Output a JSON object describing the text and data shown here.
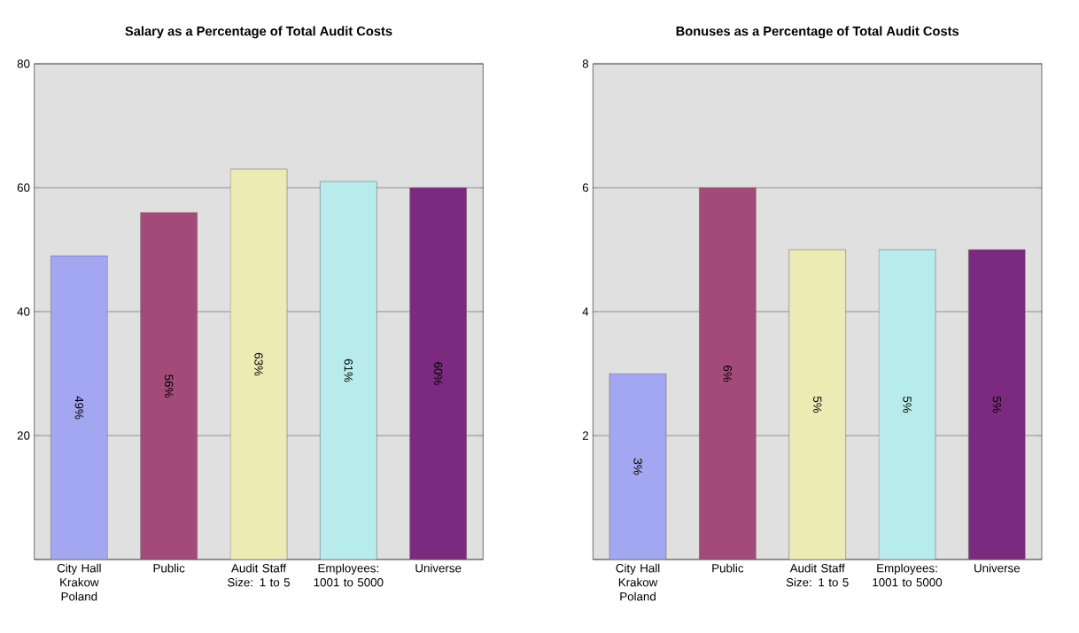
{
  "chart_data": [
    {
      "type": "bar",
      "title": "Salary as a Percentage of Total Audit Costs",
      "categories": [
        "City Hall Krakow Poland",
        "Public",
        "Audit Staff Size: 1 to 5",
        "Employees: 1001 to 5000",
        "Universe"
      ],
      "values": [
        49,
        56,
        63,
        61,
        60
      ],
      "value_labels": [
        "49%",
        "56%",
        "63%",
        "61%",
        "60%"
      ],
      "colors": [
        "#a3a6f0",
        "#a34a78",
        "#ecebb4",
        "#b8ecec",
        "#7c2a80"
      ],
      "ylim": [
        0,
        80
      ],
      "yticks": [
        {
          "value": 0,
          "label": null
        },
        20,
        40,
        60,
        80
      ],
      "grid": "y"
    },
    {
      "type": "bar",
      "title": "Bonuses as a Percentage of Total Audit Costs",
      "categories": [
        "City Hall Krakow Poland",
        "Public",
        "Audit Staff Size: 1 to 5",
        "Employees: 1001 to 5000",
        "Universe"
      ],
      "values": [
        3,
        6,
        5,
        5,
        5
      ],
      "value_labels": [
        "3%",
        "6%",
        "5%",
        "5%",
        "5%"
      ],
      "colors": [
        "#a3a6f0",
        "#a34a78",
        "#ecebb4",
        "#b8ecec",
        "#7c2a80"
      ],
      "ylim": [
        0,
        8
      ],
      "yticks": [
        {
          "value": 0,
          "label": null
        },
        2,
        4,
        6,
        8
      ],
      "grid": "y"
    }
  ]
}
